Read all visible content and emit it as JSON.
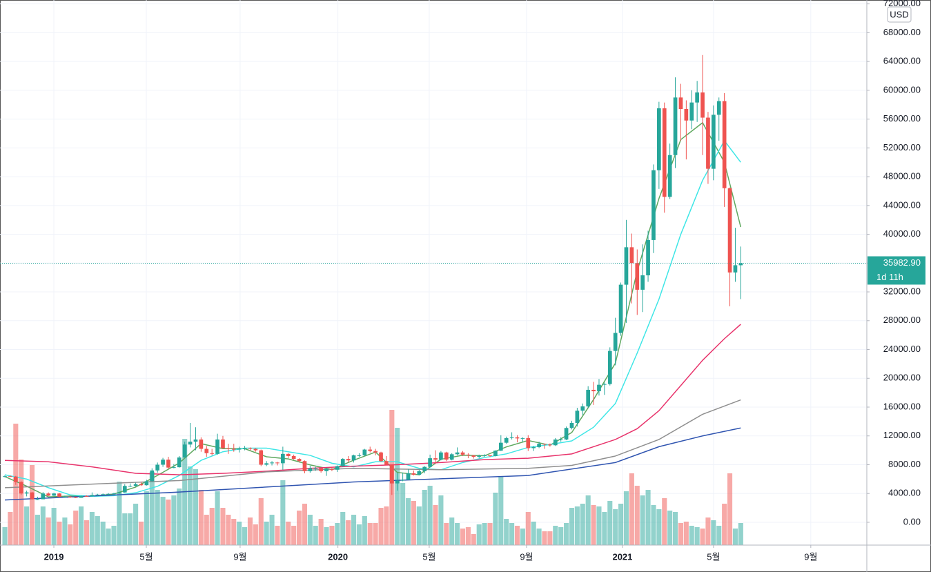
{
  "chart_data": {
    "type": "candlestick",
    "up_color": "#26a69a",
    "down_color": "#ef5350",
    "currency": "USD",
    "grid": true,
    "xlim": [
      -0.89,
      158
    ],
    "xticks": [
      {
        "value": 8.99,
        "label": "2019"
      },
      {
        "value": 25.95,
        "label": "5월"
      },
      {
        "value": 43.16,
        "label": "9월"
      },
      {
        "value": 61.1,
        "label": "2020"
      },
      {
        "value": 77.85,
        "label": "5월"
      },
      {
        "value": 95.7,
        "label": "9월"
      },
      {
        "value": 113.3,
        "label": "2021"
      },
      {
        "value": 130,
        "label": "5월"
      },
      {
        "value": 147.85,
        "label": "9월"
      }
    ],
    "ylim": [
      -3166,
      72540
    ],
    "yticks": [
      {
        "value": 0,
        "label": "0.00"
      },
      {
        "value": 4000,
        "label": "4000.00"
      },
      {
        "value": 8000,
        "label": "8000.00"
      },
      {
        "value": 12000,
        "label": "12000.00"
      },
      {
        "value": 16000,
        "label": "16000.00"
      },
      {
        "value": 20000,
        "label": "20000.00"
      },
      {
        "value": 24000,
        "label": "24000.00"
      },
      {
        "value": 28000,
        "label": "28000.00"
      },
      {
        "value": 32000,
        "label": "32000.00"
      },
      {
        "value": 36000,
        "label": "36000.00"
      },
      {
        "value": 40000,
        "label": "40000.00"
      },
      {
        "value": 44000,
        "label": "44000.00"
      },
      {
        "value": 48000,
        "label": "48000.00"
      },
      {
        "value": 52000,
        "label": "52000.00"
      },
      {
        "value": 56000,
        "label": "56000.00"
      },
      {
        "value": 60000,
        "label": "60000.00"
      },
      {
        "value": 64000,
        "label": "64000.00"
      },
      {
        "value": 68000,
        "label": "68000.00"
      },
      {
        "value": 72000,
        "label": "72000.00"
      }
    ],
    "price_line": {
      "value": 35982.9,
      "label": "35982.90",
      "countdown": "1d 11h"
    },
    "open": [
      6300,
      6400,
      6350,
      5600,
      4000,
      4150,
      3200,
      3200,
      4000,
      3700,
      4000,
      3550,
      3550,
      3500,
      3400,
      3650,
      3600,
      3800,
      3850,
      3900,
      3950,
      4000,
      4150,
      5050,
      5050,
      5300,
      5150,
      5700,
      7200,
      8000,
      8700,
      7600,
      7650,
      9000,
      10800,
      11200,
      11500,
      10200,
      9600,
      9500,
      11500,
      10300,
      10200,
      10100,
      10300,
      10300,
      10200,
      10000,
      8000,
      8200,
      8300,
      8200,
      9500,
      9200,
      8800,
      8500,
      7100,
      7500,
      7500,
      7100,
      7400,
      7300,
      7800,
      8800,
      8600,
      9300,
      9300,
      10100,
      9900,
      9700,
      8500,
      8000,
      5400,
      5800,
      5900,
      6800,
      6600,
      7100,
      7700,
      8900,
      8700,
      9700,
      8700,
      9450,
      9700,
      9400,
      9300,
      9100,
      9250,
      9300,
      9200,
      9950,
      11050,
      11700,
      11800,
      11650,
      11700,
      10300,
      10450,
      10900,
      10800,
      10700,
      11500,
      11500,
      13100,
      13800,
      15500,
      16100,
      18400,
      18200,
      19100,
      19200,
      23800,
      26300,
      33000,
      38200,
      36000,
      32300,
      34300,
      39200,
      48900,
      57500,
      45200,
      51000,
      59000,
      57400,
      55800,
      58300,
      59700,
      56200,
      49100,
      56600,
      58500,
      46400,
      34700,
      35700
    ],
    "high": [
      6550,
      6500,
      6450,
      5700,
      4400,
      4200,
      3550,
      4200,
      4150,
      4100,
      4100,
      3700,
      3650,
      3550,
      3700,
      3750,
      4150,
      3950,
      4000,
      4050,
      4100,
      4200,
      5300,
      5400,
      5500,
      5600,
      5900,
      7500,
      8300,
      8950,
      9100,
      8100,
      9200,
      11200,
      13800,
      13200,
      11800,
      10600,
      10200,
      12300,
      12000,
      10900,
      10900,
      10500,
      10600,
      10400,
      10300,
      10100,
      8500,
      8500,
      8400,
      10500,
      9600,
      9400,
      8900,
      8600,
      7850,
      7700,
      7500,
      7600,
      7650,
      7900,
      8900,
      9200,
      9400,
      9600,
      10200,
      10500,
      10200,
      9800,
      9200,
      8000,
      6900,
      6900,
      7400,
      7200,
      7300,
      7800,
      9400,
      10000,
      9900,
      9800,
      9600,
      10400,
      9900,
      9600,
      9300,
      9400,
      9450,
      9300,
      10000,
      12100,
      11900,
      12500,
      12100,
      11800,
      12100,
      10600,
      11200,
      10900,
      10950,
      11700,
      11800,
      13300,
      14100,
      15900,
      16500,
      18900,
      19500,
      19900,
      19400,
      24300,
      28400,
      33300,
      42000,
      40100,
      37900,
      38600,
      40500,
      49700,
      58400,
      58300,
      52600,
      61800,
      60900,
      58600,
      60000,
      61300,
      64900,
      57000,
      57900,
      59000,
      59600,
      46500,
      40900,
      38300
    ],
    "low": [
      6250,
      6300,
      5200,
      3800,
      3600,
      3150,
      3100,
      3200,
      3650,
      3650,
      3450,
      3500,
      3400,
      3350,
      3400,
      3550,
      3600,
      3700,
      3800,
      3850,
      3900,
      3950,
      4100,
      4900,
      4950,
      5050,
      5100,
      5650,
      6900,
      7700,
      7400,
      7500,
      7600,
      9000,
      10400,
      10000,
      9800,
      9100,
      9300,
      9400,
      10200,
      9500,
      9800,
      9700,
      10000,
      10000,
      9800,
      7800,
      7800,
      7900,
      7900,
      7300,
      8900,
      8700,
      8300,
      6800,
      6900,
      7150,
      6900,
      6450,
      7100,
      7000,
      7700,
      8300,
      8300,
      9100,
      9200,
      9700,
      9300,
      8400,
      7900,
      3800,
      4400,
      5700,
      5900,
      6500,
      6500,
      6800,
      7600,
      8100,
      8600,
      8500,
      8600,
      9300,
      9200,
      8900,
      8850,
      8900,
      9100,
      9050,
      9150,
      9900,
      10900,
      11500,
      11100,
      11200,
      9900,
      9900,
      10300,
      10200,
      10500,
      10600,
      11200,
      11400,
      12900,
      13300,
      14900,
      15900,
      16300,
      17600,
      17700,
      19000,
      21800,
      25900,
      27700,
      30400,
      28800,
      29200,
      33400,
      37400,
      46300,
      43000,
      44900,
      49200,
      53000,
      50400,
      54600,
      55600,
      51000,
      47000,
      47500,
      53000,
      43800,
      30000,
      33400,
      31000
    ],
    "close": [
      6400,
      6350,
      5600,
      4000,
      4150,
      3200,
      3200,
      4000,
      3700,
      4000,
      3550,
      3550,
      3500,
      3400,
      3650,
      3600,
      3800,
      3850,
      3900,
      3950,
      4000,
      4150,
      5050,
      5050,
      5300,
      5150,
      5700,
      7200,
      8000,
      8700,
      7600,
      7650,
      9000,
      10800,
      11200,
      11500,
      10200,
      9600,
      9500,
      11500,
      10300,
      10200,
      10100,
      10300,
      10300,
      10200,
      10000,
      8000,
      8200,
      8300,
      8200,
      9500,
      9200,
      8800,
      8500,
      7100,
      7500,
      7500,
      7100,
      7400,
      7300,
      7800,
      8800,
      8600,
      9300,
      9300,
      10100,
      9900,
      9700,
      8500,
      8000,
      5400,
      5800,
      5900,
      6800,
      6600,
      7100,
      7700,
      8900,
      8700,
      9700,
      8700,
      9450,
      9700,
      9400,
      9300,
      9100,
      9250,
      9300,
      9200,
      9950,
      11050,
      11700,
      11800,
      11650,
      11700,
      10300,
      10450,
      10900,
      10800,
      10700,
      11500,
      11500,
      13100,
      13800,
      15500,
      16100,
      18400,
      18200,
      19100,
      19200,
      23800,
      26300,
      33000,
      38200,
      36000,
      32300,
      34300,
      39200,
      48900,
      57500,
      45200,
      51000,
      59000,
      57400,
      55800,
      58300,
      59700,
      56200,
      49100,
      56600,
      58500,
      46400,
      34700,
      35700,
      35982.9
    ],
    "volume_lim": [
      0,
      100
    ],
    "volume": [
      13,
      24,
      88,
      62,
      28,
      58,
      22,
      28,
      20,
      27,
      17,
      20,
      15,
      25,
      28,
      18,
      24,
      21,
      17,
      12,
      14,
      46,
      23,
      23,
      30,
      17,
      39,
      53,
      40,
      35,
      33,
      36,
      41,
      77,
      57,
      55,
      40,
      22,
      27,
      39,
      27,
      22,
      19,
      17,
      13,
      20,
      15,
      34,
      17,
      22,
      14,
      47,
      17,
      14,
      25,
      30,
      22,
      14,
      19,
      13,
      14,
      16,
      24,
      18,
      22,
      15,
      21,
      16,
      16,
      27,
      28,
      98,
      85,
      45,
      34,
      32,
      28,
      40,
      43,
      29,
      36,
      16,
      20,
      16,
      12,
      13,
      8,
      15,
      16,
      16,
      38,
      50,
      19,
      16,
      14,
      12,
      24,
      17,
      12,
      10,
      10,
      14,
      13,
      16,
      27,
      28,
      30,
      36,
      29,
      28,
      24,
      32,
      26,
      30,
      39,
      52,
      43,
      36,
      40,
      29,
      26,
      34,
      25,
      24,
      16,
      17,
      14,
      13,
      12,
      20,
      18,
      14,
      30,
      52,
      12,
      16
    ],
    "moving_averages": [
      {
        "color": "#5fa85f",
        "x": [
          0,
          4,
          8,
          12,
          16,
          20,
          24,
          28,
          32,
          36,
          40,
          44,
          48,
          52,
          56,
          60,
          64,
          68,
          72,
          76,
          80,
          84,
          88,
          92,
          96,
          100,
          104,
          108,
          112,
          116,
          120,
          124,
          128,
          132,
          135
        ],
        "values": [
          6350,
          5025,
          3525,
          3650,
          3610,
          3925,
          4890,
          6510,
          8240,
          10925,
          10225,
          10225,
          9100,
          8800,
          7975,
          7325,
          8625,
          9750,
          6925,
          6600,
          8750,
          9310,
          9240,
          10475,
          11360,
          10710,
          12475,
          17050,
          22100,
          34875,
          44975,
          53150,
          55500,
          50000,
          41000
        ]
      },
      {
        "color": "#3ee6e6",
        "x": [
          0,
          4,
          8,
          12,
          16,
          20,
          24,
          28,
          32,
          36,
          40,
          44,
          48,
          52,
          56,
          60,
          64,
          68,
          72,
          76,
          80,
          84,
          88,
          92,
          96,
          100,
          104,
          108,
          112,
          116,
          120,
          124,
          128,
          132,
          135
        ],
        "values": [
          6600,
          6000,
          4800,
          3800,
          3600,
          3700,
          4100,
          5000,
          6500,
          8600,
          9800,
          10300,
          10300,
          9800,
          9300,
          8200,
          7700,
          8400,
          8400,
          7500,
          7300,
          8300,
          9000,
          9500,
          10400,
          10800,
          11300,
          13200,
          16500,
          23500,
          31000,
          40000,
          47500,
          53000,
          50000
        ]
      },
      {
        "color": "#e8336b",
        "x": [
          0,
          8,
          16,
          24,
          32,
          40,
          48,
          56,
          64,
          72,
          80,
          88,
          96,
          104,
          112,
          116,
          120,
          124,
          128,
          132,
          135
        ],
        "values": [
          8600,
          8400,
          7700,
          6800,
          6600,
          6800,
          7100,
          7500,
          7800,
          8000,
          8300,
          8700,
          8900,
          9500,
          11500,
          13000,
          15500,
          19000,
          22500,
          25500,
          27500
        ]
      },
      {
        "color": "#8f8f8f",
        "x": [
          0,
          16,
          32,
          48,
          64,
          80,
          96,
          104,
          112,
          120,
          128,
          135
        ],
        "values": [
          4800,
          5300,
          5800,
          7000,
          7500,
          7300,
          7500,
          7900,
          9200,
          11500,
          15000,
          17000
        ]
      },
      {
        "color": "#2f54b0",
        "x": [
          0,
          32,
          64,
          96,
          112,
          120,
          128,
          135
        ],
        "values": [
          3100,
          4200,
          5600,
          6500,
          8300,
          10500,
          12000,
          13100
        ]
      }
    ]
  }
}
